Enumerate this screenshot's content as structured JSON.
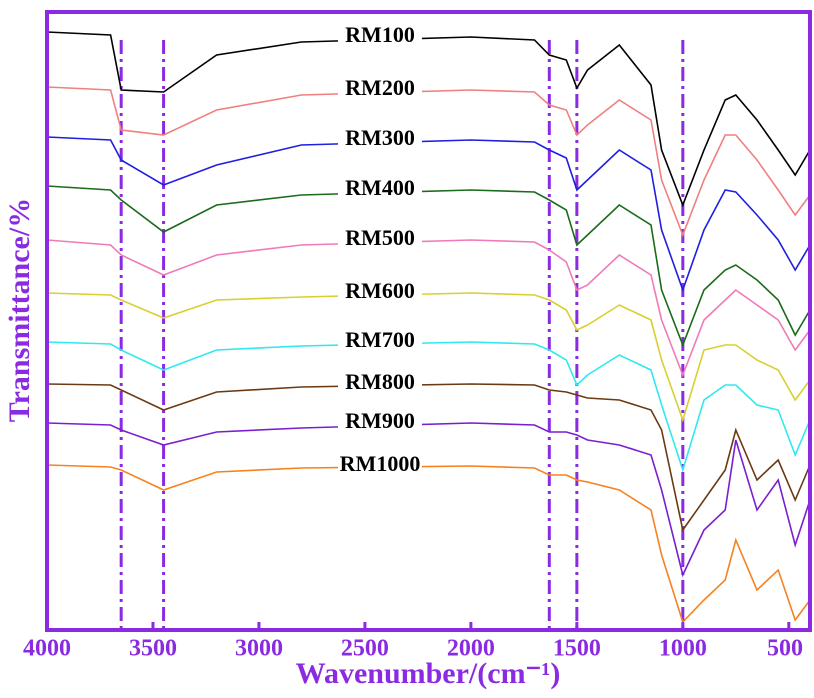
{
  "chart_data": {
    "type": "line",
    "x_label": "Wavenumber/(cm⁻¹)",
    "y_label": "Transmittance/%",
    "xlim": [
      4000,
      400
    ],
    "xticks": [
      4000,
      3500,
      3000,
      2500,
      2000,
      1500,
      1000,
      500
    ],
    "ylim": [
      0,
      618
    ],
    "frame_color": "#8a2be2",
    "reference_lines": [
      3650,
      3450,
      1630,
      1500,
      1000
    ],
    "reference_color": "#8a2be2",
    "x": [
      4000,
      3700,
      3650,
      3450,
      3200,
      2800,
      2000,
      1700,
      1630,
      1550,
      1500,
      1450,
      1300,
      1150,
      1100,
      1000,
      900,
      800,
      750,
      650,
      550,
      470,
      400
    ],
    "series": [
      {
        "name": "RM100",
        "color": "#000000",
        "values": [
          598,
          595,
          540,
          538,
          575,
          588,
          593,
          590,
          575,
          570,
          542,
          560,
          585,
          545,
          480,
          425,
          480,
          530,
          535,
          510,
          480,
          455,
          480
        ]
      },
      {
        "name": "RM200",
        "color": "#f08080",
        "values": [
          543,
          540,
          500,
          495,
          520,
          535,
          540,
          538,
          525,
          520,
          495,
          505,
          530,
          510,
          450,
          395,
          450,
          495,
          495,
          470,
          440,
          415,
          435
        ]
      },
      {
        "name": "RM300",
        "color": "#1f1fe0",
        "values": [
          493,
          490,
          470,
          445,
          465,
          485,
          490,
          488,
          480,
          472,
          440,
          450,
          480,
          460,
          400,
          340,
          400,
          440,
          438,
          415,
          390,
          360,
          385
        ]
      },
      {
        "name": "RM400",
        "color": "#1a6b1a",
        "values": [
          444,
          440,
          430,
          398,
          425,
          435,
          440,
          438,
          430,
          420,
          385,
          395,
          425,
          405,
          340,
          285,
          340,
          360,
          365,
          350,
          330,
          295,
          320
        ]
      },
      {
        "name": "RM500",
        "color": "#f07ab8",
        "values": [
          390,
          385,
          375,
          355,
          375,
          385,
          390,
          388,
          380,
          368,
          340,
          345,
          375,
          355,
          310,
          255,
          310,
          330,
          340,
          325,
          310,
          280,
          300
        ]
      },
      {
        "name": "RM600",
        "color": "#d8d030",
        "values": [
          337,
          335,
          330,
          312,
          330,
          333,
          337,
          335,
          330,
          320,
          300,
          305,
          325,
          310,
          270,
          210,
          280,
          285,
          285,
          270,
          260,
          230,
          250
        ]
      },
      {
        "name": "RM700",
        "color": "#30e8f0",
        "values": [
          288,
          286,
          280,
          260,
          280,
          284,
          288,
          286,
          280,
          270,
          245,
          255,
          275,
          260,
          225,
          160,
          230,
          245,
          245,
          225,
          220,
          175,
          210
        ]
      },
      {
        "name": "RM800",
        "color": "#6b3a14",
        "values": [
          246,
          245,
          240,
          220,
          238,
          243,
          246,
          245,
          240,
          238,
          235,
          232,
          230,
          220,
          200,
          100,
          130,
          160,
          200,
          150,
          170,
          130,
          165
        ]
      },
      {
        "name": "RM900",
        "color": "#7a1fd0",
        "values": [
          207,
          205,
          200,
          185,
          198,
          202,
          207,
          205,
          198,
          198,
          195,
          190,
          185,
          175,
          140,
          55,
          100,
          120,
          190,
          120,
          150,
          85,
          130
        ]
      },
      {
        "name": "RM1000",
        "color": "#f5821f",
        "values": [
          165,
          163,
          160,
          140,
          158,
          162,
          164,
          162,
          155,
          155,
          150,
          148,
          140,
          120,
          75,
          8,
          30,
          50,
          90,
          40,
          60,
          10,
          30
        ]
      }
    ]
  }
}
